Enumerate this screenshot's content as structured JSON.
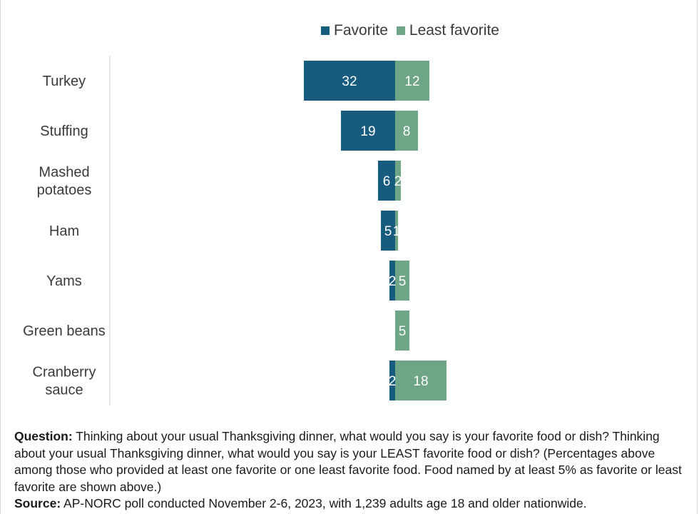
{
  "chart_data": {
    "type": "bar",
    "orientation": "horizontal",
    "stacked": true,
    "title": "",
    "xlabel": "",
    "ylabel": "",
    "categories": [
      "Turkey",
      "Stuffing",
      "Mashed potatoes",
      "Ham",
      "Yams",
      "Green beans",
      "Cranberry sauce"
    ],
    "category_lines": [
      [
        "Turkey"
      ],
      [
        "Stuffing"
      ],
      [
        "Mashed",
        "potatoes"
      ],
      [
        "Ham"
      ],
      [
        "Yams"
      ],
      [
        "Green beans"
      ],
      [
        "Cranberry",
        "sauce"
      ]
    ],
    "series": [
      {
        "name": "Favorite",
        "values": [
          32,
          19,
          6,
          5,
          2,
          0,
          2
        ],
        "labels": [
          "32",
          "19",
          "6",
          "5",
          "2",
          "",
          "2"
        ],
        "color": "#175c7e"
      },
      {
        "name": "Least favorite",
        "values": [
          12,
          8,
          2,
          1,
          5,
          5,
          18
        ],
        "labels": [
          "12",
          "8",
          "2",
          "1",
          "5",
          "5",
          "18"
        ],
        "color": "#6fa587"
      }
    ],
    "legend_position": "top",
    "grid": false
  },
  "notes": {
    "question_label": "Question:",
    "question_text": " Thinking about your usual Thanksgiving dinner, what would you say is your favorite food or dish? Thinking about your usual Thanksgiving dinner, what would you say is your LEAST favorite food or dish? (Percentages above among those who provided at least one favorite or one least favorite food. Food named by at least 5% as favorite or least favorite are shown above.)",
    "source_label": "Source:",
    "source_text": " AP-NORC poll conducted November 2-6, 2023, with 1,239 adults age 18 and older nationwide."
  }
}
